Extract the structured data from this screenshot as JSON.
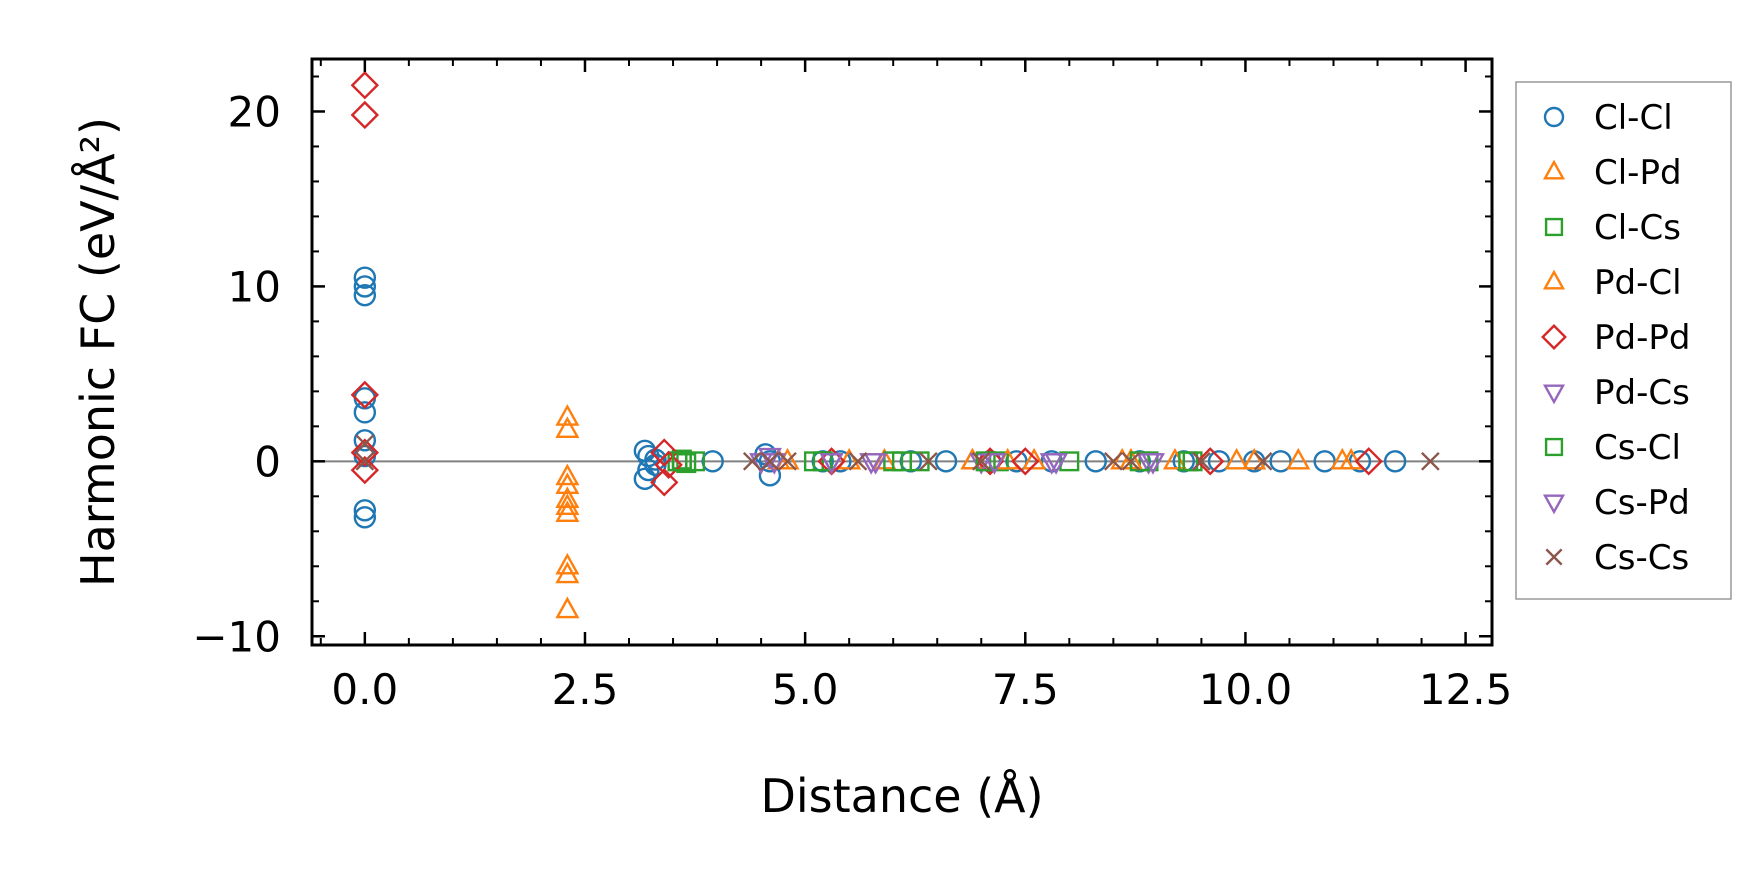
{
  "chart_data": {
    "type": "scatter",
    "title": "",
    "xlabel": "Distance (Å)",
    "ylabel": "Harmonic FC (eV/Å²)",
    "xlim": [
      -0.6,
      12.8
    ],
    "ylim": [
      -10.5,
      23
    ],
    "xticks": [
      0.0,
      2.5,
      5.0,
      7.5,
      10.0,
      12.5
    ],
    "xtick_labels": [
      "0.0",
      "2.5",
      "5.0",
      "7.5",
      "10.0",
      "12.5"
    ],
    "yticks": [
      -10,
      0,
      10,
      20
    ],
    "ytick_labels": [
      "−10",
      "0",
      "10",
      "20"
    ],
    "zero_line": true,
    "legend_position": "right-outside",
    "series": [
      {
        "name": "Cl-Cl",
        "marker": "circle",
        "color": "#1f77b4",
        "x": [
          0.0,
          0.0,
          0.0,
          0.0,
          0.0,
          0.0,
          0.0,
          0.0,
          0.0,
          3.18,
          3.18,
          3.22,
          3.22,
          3.3,
          3.3,
          3.95,
          4.55,
          4.6,
          4.6,
          5.2,
          5.4,
          6.2,
          6.6,
          7.1,
          7.4,
          7.8,
          8.3,
          8.8,
          9.3,
          9.7,
          10.1,
          10.4,
          10.9,
          11.3,
          11.7
        ],
        "y": [
          10.5,
          10.0,
          9.5,
          3.6,
          2.8,
          1.2,
          0.3,
          -2.8,
          -3.2,
          0.6,
          -1.0,
          0.3,
          -0.5,
          0.1,
          -0.2,
          0.0,
          0.4,
          -0.8,
          0.0,
          0.0,
          0.0,
          0.0,
          0.0,
          0.0,
          0.0,
          0.0,
          0.0,
          0.0,
          0.0,
          0.0,
          0.0,
          0.0,
          0.0,
          0.0,
          0.0
        ]
      },
      {
        "name": "Cl-Pd",
        "marker": "triangle-up",
        "color": "#ff7f0e",
        "x": [
          2.3,
          2.3,
          2.3,
          2.3,
          2.3,
          2.3,
          2.3,
          2.3,
          2.3,
          2.3,
          4.8,
          5.9,
          6.9,
          7.6,
          8.6,
          9.2,
          10.1,
          10.6,
          11.2
        ],
        "y": [
          2.5,
          1.8,
          -0.9,
          -1.4,
          -2.2,
          -2.6,
          -3.0,
          -6.0,
          -6.5,
          -8.5,
          0.0,
          0.0,
          0.0,
          0.0,
          0.0,
          0.0,
          0.0,
          0.0,
          0.0
        ]
      },
      {
        "name": "Cl-Cs",
        "marker": "square",
        "color": "#2ca02c",
        "x": [
          3.55,
          3.6,
          3.65,
          3.75,
          5.1,
          6.0,
          6.3,
          7.2,
          8.0,
          8.9,
          9.4
        ],
        "y": [
          0.0,
          0.1,
          -0.1,
          0.0,
          0.0,
          0.0,
          0.0,
          0.0,
          0.0,
          0.0,
          0.0
        ]
      },
      {
        "name": "Pd-Cl",
        "marker": "triangle-up",
        "color": "#ff7f0e",
        "x": [
          4.7,
          5.5,
          6.9,
          7.3,
          8.7,
          9.9,
          11.1
        ],
        "y": [
          0.0,
          0.0,
          0.0,
          0.0,
          0.0,
          0.0,
          0.0
        ]
      },
      {
        "name": "Pd-Pd",
        "marker": "diamond",
        "color": "#d62728",
        "x": [
          0.0,
          0.0,
          0.0,
          0.0,
          0.0,
          3.4,
          3.4,
          3.45,
          5.3,
          7.1,
          7.5,
          9.6,
          11.4
        ],
        "y": [
          21.5,
          19.8,
          3.8,
          0.5,
          -0.5,
          -1.2,
          0.5,
          -0.2,
          0.0,
          0.0,
          0.0,
          0.0,
          0.0
        ]
      },
      {
        "name": "Pd-Cs",
        "marker": "triangle-down",
        "color": "#9467bd",
        "x": [
          4.5,
          4.6,
          5.3,
          5.8,
          7.0,
          7.8,
          8.9
        ],
        "y": [
          0.0,
          0.3,
          0.0,
          0.0,
          0.0,
          0.0,
          0.0
        ]
      },
      {
        "name": "Cs-Cl",
        "marker": "square",
        "color": "#2ca02c",
        "x": [
          3.6,
          5.2,
          6.1,
          7.05,
          8.8,
          9.35
        ],
        "y": [
          0.0,
          0.0,
          0.0,
          0.0,
          0.0,
          0.0
        ]
      },
      {
        "name": "Cs-Pd",
        "marker": "triangle-down",
        "color": "#9467bd",
        "x": [
          4.65,
          5.3,
          5.75,
          7.15,
          7.85,
          8.95
        ],
        "y": [
          0.0,
          0.0,
          0.0,
          0.0,
          0.0,
          0.0
        ]
      },
      {
        "name": "Cs-Cs",
        "marker": "x",
        "color": "#8c564b",
        "x": [
          0.0,
          0.0,
          4.4,
          4.6,
          4.8,
          5.6,
          6.4,
          7.0,
          8.5,
          8.7,
          9.5,
          10.2,
          12.1
        ],
        "y": [
          1.0,
          0.0,
          0.0,
          0.0,
          0.0,
          0.0,
          0.0,
          0.0,
          0.0,
          0.0,
          0.0,
          0.0,
          0.0
        ]
      }
    ]
  }
}
